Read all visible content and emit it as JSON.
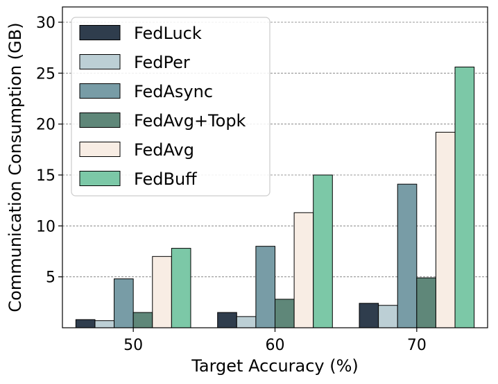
{
  "chart_data": {
    "type": "bar",
    "xlabel": "Target Accuracy (%)",
    "ylabel": "Communication Consumption (GB)",
    "categories": [
      "50",
      "60",
      "70"
    ],
    "ylim": [
      0,
      31.5
    ],
    "yticks": [
      5,
      10,
      15,
      20,
      25,
      30
    ],
    "grid": "horizontal dashed",
    "legend_position": "top-left",
    "series": [
      {
        "name": "FedLuck",
        "color": "#2f3d4d",
        "values": [
          0.8,
          1.5,
          2.4
        ]
      },
      {
        "name": "FedPer",
        "color": "#bccfd5",
        "values": [
          0.7,
          1.1,
          2.2
        ]
      },
      {
        "name": "FedAsync",
        "color": "#789ca6",
        "values": [
          4.8,
          8.0,
          14.1
        ]
      },
      {
        "name": "FedAvg+Topk",
        "color": "#5f8779",
        "values": [
          1.5,
          2.8,
          4.9
        ]
      },
      {
        "name": "FedAvg",
        "color": "#f8ede4",
        "values": [
          7.0,
          11.3,
          19.2
        ]
      },
      {
        "name": "FedBuff",
        "color": "#7cc8a7",
        "values": [
          7.8,
          15.0,
          25.6
        ]
      }
    ]
  }
}
